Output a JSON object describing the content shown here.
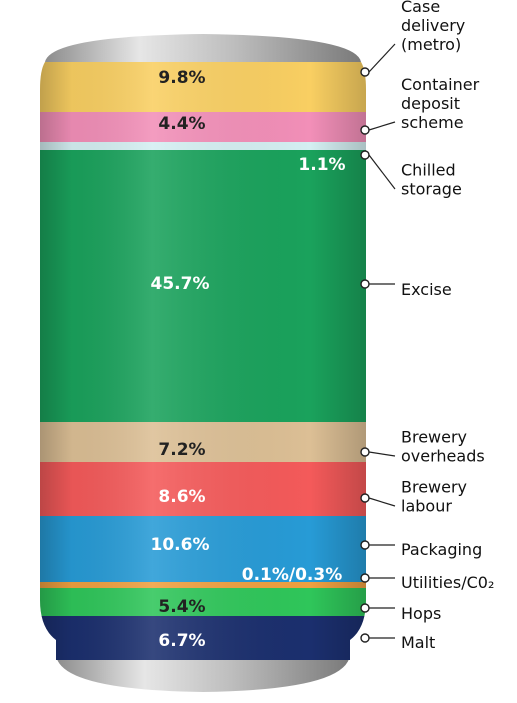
{
  "chart_data": {
    "type": "stacked-bar",
    "title": "",
    "segments": [
      {
        "name": "Case delivery (metro)",
        "label_lines": [
          "Case",
          "delivery",
          "(metro)"
        ],
        "value_label": "9.8%",
        "value": 9.8,
        "color": "#f9cf62",
        "text_color": "#222222"
      },
      {
        "name": "Container deposit scheme",
        "label_lines": [
          "Container",
          "deposit",
          "scheme"
        ],
        "value_label": "4.4%",
        "value": 4.4,
        "color": "#f28fb8",
        "text_color": "#222222"
      },
      {
        "name": "Chilled storage",
        "label_lines": [
          "Chilled",
          "storage"
        ],
        "value_label": "1.1%",
        "value": 1.1,
        "color": "#d4eff2",
        "text_color": "#ffffff"
      },
      {
        "name": "Excise",
        "label_lines": [
          "Excise"
        ],
        "value_label": "45.7%",
        "value": 45.7,
        "color": "#1aa25c",
        "text_color": "#ffffff"
      },
      {
        "name": "Brewery overheads",
        "label_lines": [
          "Brewery",
          "overheads"
        ],
        "value_label": "7.2%",
        "value": 7.2,
        "color": "#dcbf95",
        "text_color": "#222222"
      },
      {
        "name": "Brewery labour",
        "label_lines": [
          "Brewery",
          "labour"
        ],
        "value_label": "8.6%",
        "value": 8.6,
        "color": "#f45a5a",
        "text_color": "#ffffff"
      },
      {
        "name": "Packaging",
        "label_lines": [
          "Packaging"
        ],
        "value_label": "10.6%",
        "value": 10.6,
        "color": "#279bd6",
        "text_color": "#ffffff"
      },
      {
        "name": "Utilities/C02",
        "label_lines": [
          "Utilities/C0₂"
        ],
        "value_label": "0.1%/0.3%",
        "value": 0.4,
        "color": "#f0a040",
        "text_color": "#ffffff"
      },
      {
        "name": "Hops",
        "label_lines": [
          "Hops"
        ],
        "value_label": "5.4%",
        "value": 5.4,
        "color": "#2fc65a",
        "text_color": "#222222"
      },
      {
        "name": "Malt",
        "label_lines": [
          "Malt"
        ],
        "value_label": "6.7%",
        "value": 6.7,
        "color": "#1b2f6e",
        "text_color": "#ffffff"
      }
    ]
  }
}
